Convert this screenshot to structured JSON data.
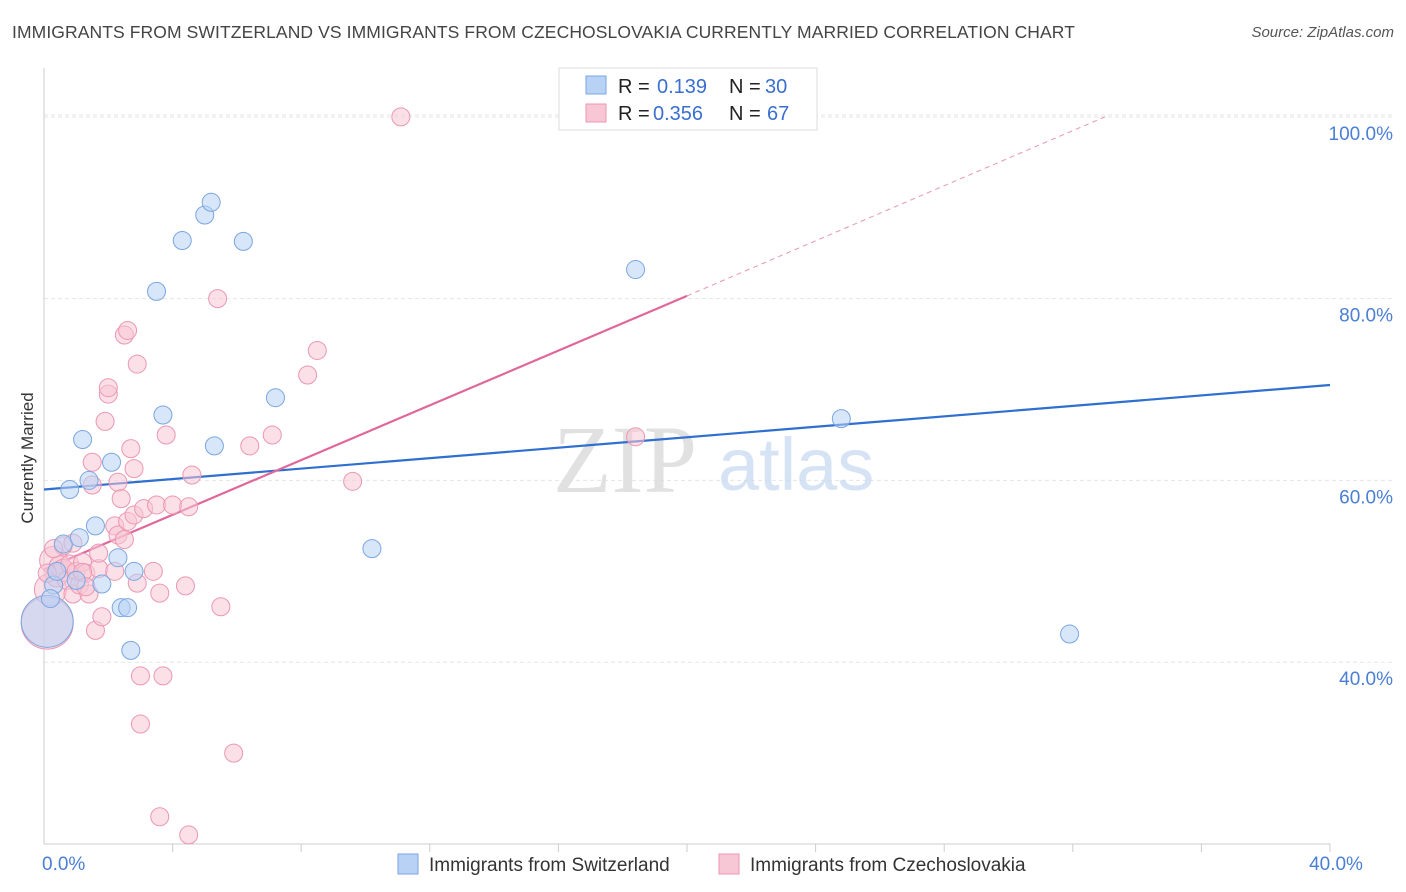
{
  "title": "IMMIGRANTS FROM SWITZERLAND VS IMMIGRANTS FROM CZECHOSLOVAKIA CURRENTLY MARRIED CORRELATION CHART",
  "source": "Source: ZipAtlas.com",
  "watermark": {
    "zip": "ZIP",
    "atlas": "atlas"
  },
  "colors": {
    "switzerland_fill": "#b8d2f5",
    "switzerland_stroke": "#7aa6e0",
    "switzerland_line": "#2f6fd0",
    "czech_fill": "#f8c7d6",
    "czech_stroke": "#ec97b3",
    "czech_line": "#e0679a",
    "tick_text": "#4a7fd4",
    "grid": "#e5e5e5"
  },
  "legend": {
    "rows": [
      {
        "r_label": "R =",
        "r_value": "0.139",
        "n_label": "N =",
        "n_value": "30"
      },
      {
        "r_label": "R =",
        "r_value": "0.356",
        "n_label": "N =",
        "n_value": "67"
      }
    ]
  },
  "chart_data": {
    "type": "scatter",
    "ylabel": "Currently Married",
    "xlim": [
      0,
      40
    ],
    "ylim": [
      20,
      104
    ],
    "x_ticks": [
      {
        "value": 0,
        "label": "0.0%"
      },
      {
        "value": 40,
        "label": "40.0%"
      }
    ],
    "x_minor_ticks": [
      4,
      8,
      12,
      16,
      20,
      24,
      28,
      32,
      36,
      40
    ],
    "y_ticks": [
      {
        "value": 40,
        "label": "40.0%"
      },
      {
        "value": 60,
        "label": "60.0%"
      },
      {
        "value": 80,
        "label": "80.0%"
      },
      {
        "value": 100,
        "label": "100.0%"
      }
    ],
    "grid": true,
    "legend_position": "top-center",
    "series": [
      {
        "name": "Immigrants from Switzerland",
        "points": [
          [
            0.1,
            44.5
          ],
          [
            0.3,
            48.5
          ],
          [
            0.6,
            53
          ],
          [
            0.8,
            59
          ],
          [
            1.1,
            53.7
          ],
          [
            1.2,
            64.5
          ],
          [
            1.4,
            60
          ],
          [
            1.6,
            55
          ],
          [
            1.8,
            48.6
          ],
          [
            2.1,
            62
          ],
          [
            2.3,
            51.5
          ],
          [
            2.4,
            46
          ],
          [
            2.6,
            46
          ],
          [
            2.7,
            41.3
          ],
          [
            2.8,
            50
          ],
          [
            3.5,
            80.8
          ],
          [
            3.7,
            67.2
          ],
          [
            4.3,
            86.4
          ],
          [
            5.0,
            89.2
          ],
          [
            5.2,
            90.6
          ],
          [
            5.3,
            63.8
          ],
          [
            6.2,
            86.3
          ],
          [
            7.2,
            69.1
          ],
          [
            10.2,
            52.5
          ],
          [
            18.4,
            83.2
          ],
          [
            24.8,
            66.8
          ],
          [
            31.9,
            43.1
          ],
          [
            0.4,
            50
          ],
          [
            1.0,
            49
          ],
          [
            0.2,
            47
          ]
        ],
        "sizes": [
          26,
          9,
          9,
          9,
          9,
          9,
          9,
          9,
          9,
          9,
          9,
          9,
          9,
          9,
          9,
          9,
          9,
          9,
          9,
          9,
          9,
          9,
          9,
          9,
          9,
          9,
          9,
          9,
          9,
          9
        ],
        "trend": {
          "x": [
            0,
            40
          ],
          "y": [
            59.0,
            70.5
          ]
        }
      },
      {
        "name": "Immigrants from Czechoslovakia",
        "points": [
          [
            0.1,
            44.3
          ],
          [
            0.2,
            48
          ],
          [
            0.3,
            51.2
          ],
          [
            0.4,
            49.5
          ],
          [
            0.5,
            50.5
          ],
          [
            0.6,
            50.1
          ],
          [
            0.7,
            49
          ],
          [
            0.8,
            50.8
          ],
          [
            0.9,
            47.5
          ],
          [
            1.0,
            50
          ],
          [
            1.1,
            48.5
          ],
          [
            1.2,
            51
          ],
          [
            1.3,
            49.8
          ],
          [
            1.4,
            47.5
          ],
          [
            1.5,
            59.5
          ],
          [
            1.5,
            62
          ],
          [
            1.6,
            43.5
          ],
          [
            1.7,
            50.3
          ],
          [
            1.7,
            52
          ],
          [
            1.8,
            45
          ],
          [
            1.9,
            66.5
          ],
          [
            2.0,
            69.5
          ],
          [
            2.0,
            70.2
          ],
          [
            2.2,
            55
          ],
          [
            2.2,
            50
          ],
          [
            2.3,
            59.8
          ],
          [
            2.3,
            54
          ],
          [
            2.4,
            58
          ],
          [
            2.5,
            53.5
          ],
          [
            2.5,
            76
          ],
          [
            2.6,
            55.5
          ],
          [
            2.6,
            76.5
          ],
          [
            2.7,
            63.5
          ],
          [
            2.8,
            56.2
          ],
          [
            2.8,
            61.3
          ],
          [
            2.9,
            48.7
          ],
          [
            2.9,
            72.8
          ],
          [
            3.0,
            38.5
          ],
          [
            3.0,
            33.2
          ],
          [
            3.1,
            56.9
          ],
          [
            3.4,
            50
          ],
          [
            3.5,
            57.3
          ],
          [
            3.6,
            47.6
          ],
          [
            3.7,
            38.5
          ],
          [
            3.8,
            65
          ],
          [
            4.0,
            57.3
          ],
          [
            3.6,
            23
          ],
          [
            4.4,
            48.4
          ],
          [
            4.5,
            57.1
          ],
          [
            4.5,
            21
          ],
          [
            4.6,
            60.6
          ],
          [
            5.5,
            46.1
          ],
          [
            5.4,
            80
          ],
          [
            5.9,
            30
          ],
          [
            6.4,
            63.8
          ],
          [
            7.1,
            65
          ],
          [
            8.2,
            71.6
          ],
          [
            8.5,
            74.3
          ],
          [
            9.6,
            59.9
          ],
          [
            11.1,
            100
          ],
          [
            18.4,
            64.8
          ],
          [
            0.6,
            52.8
          ],
          [
            0.3,
            52.5
          ],
          [
            0.9,
            53.1
          ],
          [
            1.2,
            49.9
          ],
          [
            1.3,
            48.3
          ],
          [
            0.1,
            49.8
          ]
        ],
        "sizes": [
          26,
          16,
          14,
          11,
          11,
          11,
          9,
          9,
          9,
          9,
          9,
          9,
          9,
          9,
          9,
          9,
          9,
          9,
          9,
          9,
          9,
          9,
          9,
          9,
          9,
          9,
          9,
          9,
          9,
          9,
          9,
          9,
          9,
          9,
          9,
          9,
          9,
          9,
          9,
          9,
          9,
          9,
          9,
          9,
          9,
          9,
          9,
          9,
          9,
          9,
          9,
          9,
          9,
          9,
          9,
          9,
          9,
          9,
          9,
          9,
          9,
          9,
          9,
          9,
          9,
          9,
          9
        ],
        "trend": {
          "x": [
            0,
            20
          ],
          "y": [
            50.2,
            80.3
          ]
        },
        "trend_extension": {
          "x": [
            20,
            33
          ],
          "y": [
            80.3,
            100
          ]
        }
      }
    ]
  }
}
